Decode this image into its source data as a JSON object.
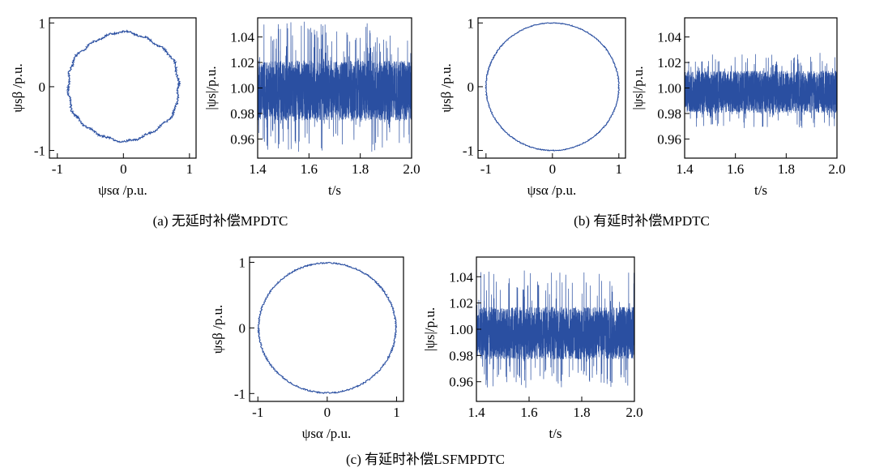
{
  "colors": {
    "trace": "#2a4fa1",
    "axis": "#000000"
  },
  "captions": [
    "(a) 无延时补偿MPDTC",
    "(b) 有延时补偿MPDTC",
    "(c) 有延时补偿LSFMPDTC"
  ],
  "chart_data": [
    {
      "type": "line",
      "subtype": "flux-trajectory",
      "panel": "a",
      "xlabel": "ψsα /p.u.",
      "ylabel": "ψsβ /p.u.",
      "xlim": [
        -1.12,
        1.1
      ],
      "ylim": [
        -1.12,
        1.08
      ],
      "xticks": [
        -1,
        0,
        1
      ],
      "yticks": [
        -1,
        0,
        1
      ],
      "radius": 0.98,
      "ripple": 0.05,
      "shape": "polygonal"
    },
    {
      "type": "line",
      "subtype": "flux-magnitude",
      "panel": "a",
      "xlabel": "t/s",
      "ylabel": "|ψs|/p.u.",
      "xlim": [
        1.4,
        2.0
      ],
      "ylim": [
        0.945,
        1.055
      ],
      "xticks": [
        1.4,
        1.6,
        1.8,
        2.0
      ],
      "yticks": [
        0.96,
        0.98,
        1.0,
        1.02,
        1.04
      ],
      "xtick_labels": [
        "1.4",
        "1.6",
        "1.8",
        "2.0"
      ],
      "ytick_labels": [
        "0.96",
        "0.98",
        "1.00",
        "1.02",
        "1.04"
      ],
      "mean": 0.998,
      "band": [
        0.975,
        1.022
      ],
      "spike_range": [
        0.95,
        1.052
      ]
    },
    {
      "type": "line",
      "subtype": "flux-trajectory",
      "panel": "b",
      "xlabel": "ψsα /p.u.",
      "ylabel": "ψsβ /p.u.",
      "xlim": [
        -1.12,
        1.1
      ],
      "ylim": [
        -1.12,
        1.08
      ],
      "xticks": [
        -1,
        0,
        1
      ],
      "yticks": [
        -1,
        0,
        1
      ],
      "radius": 1.0,
      "ripple": 0.025,
      "shape": "circular"
    },
    {
      "type": "line",
      "subtype": "flux-magnitude",
      "panel": "b",
      "xlabel": "t/s",
      "ylabel": "|ψs|/p.u.",
      "xlim": [
        1.4,
        2.0
      ],
      "ylim": [
        0.945,
        1.055
      ],
      "xticks": [
        1.4,
        1.6,
        1.8,
        2.0
      ],
      "yticks": [
        0.96,
        0.98,
        1.0,
        1.02,
        1.04
      ],
      "xtick_labels": [
        "1.4",
        "1.6",
        "1.8",
        "2.0"
      ],
      "ytick_labels": [
        "0.96",
        "0.98",
        "1.00",
        "1.02",
        "1.04"
      ],
      "mean": 0.997,
      "band": [
        0.982,
        1.015
      ],
      "spike_range": [
        0.968,
        1.028
      ]
    },
    {
      "type": "line",
      "subtype": "flux-trajectory",
      "panel": "c",
      "xlabel": "ψsα /p.u.",
      "ylabel": "ψsβ /p.u.",
      "xlim": [
        -1.12,
        1.1
      ],
      "ylim": [
        -1.12,
        1.08
      ],
      "xticks": [
        -1,
        0,
        1
      ],
      "yticks": [
        -1,
        0,
        1
      ],
      "radius": 0.99,
      "ripple": 0.035,
      "shape": "circular"
    },
    {
      "type": "line",
      "subtype": "flux-magnitude",
      "panel": "c",
      "xlabel": "t/s",
      "ylabel": "|ψs|/p.u.",
      "xlim": [
        1.4,
        2.0
      ],
      "ylim": [
        0.945,
        1.055
      ],
      "xticks": [
        1.4,
        1.6,
        1.8,
        2.0
      ],
      "yticks": [
        0.96,
        0.98,
        1.0,
        1.02,
        1.04
      ],
      "xtick_labels": [
        "1.4",
        "1.6",
        "1.8",
        "2.0"
      ],
      "ytick_labels": [
        "0.96",
        "0.98",
        "1.00",
        "1.02",
        "1.04"
      ],
      "mean": 0.997,
      "band": [
        0.978,
        1.018
      ],
      "spike_range": [
        0.955,
        1.045
      ]
    }
  ]
}
